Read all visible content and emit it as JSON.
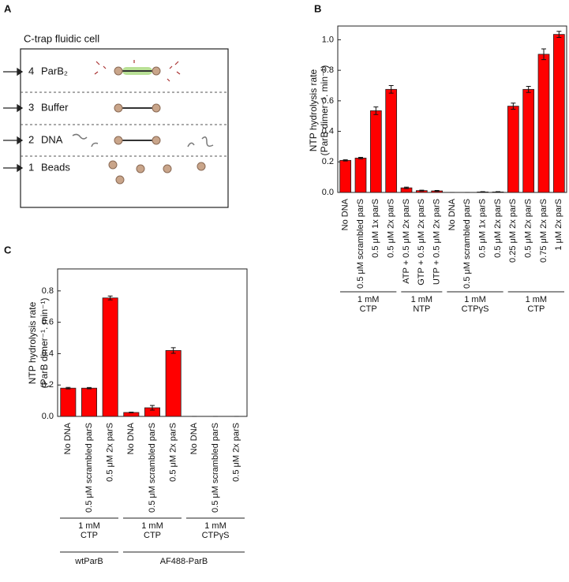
{
  "panel_labels": [
    "A",
    "B",
    "C"
  ],
  "diagram": {
    "title": "C-trap fluidic cell",
    "channels": [
      {
        "number": "4",
        "label": "ParB₂"
      },
      {
        "number": "3",
        "label": "Buffer"
      },
      {
        "number": "2",
        "label": "DNA"
      },
      {
        "number": "1",
        "label": "Beads"
      }
    ]
  },
  "chart_data": [
    {
      "type": "bar",
      "y_label": [
        "NTP hydrolysis rate",
        "(ParB dimer⁻¹. min⁻¹)"
      ],
      "color": "#ff0000",
      "ylim": [
        0,
        1.09
      ],
      "yticks": [
        {
          "value": 0,
          "label": "0.0"
        },
        0.2,
        0.4,
        0.6,
        0.8,
        {
          "value": 1,
          "label": "1.0"
        }
      ],
      "groups": [
        {
          "label": [
            "1 mM",
            "CTP"
          ],
          "categories": [
            "No DNA",
            "0.5 μM scrambled parS",
            "0.5 μM 1x parS",
            "0.5 μM 2x parS"
          ],
          "values": [
            0.21,
            0.225,
            0.535,
            0.675
          ],
          "errors": [
            0.004,
            0.005,
            0.025,
            0.025
          ]
        },
        {
          "label": [
            "1 mM",
            "NTP"
          ],
          "categories": [
            "ATP + 0.5 μM 2x parS",
            "GTP + 0.5 μM 2x parS",
            "UTP + 0.5 μM 2x parS"
          ],
          "values": [
            0.03,
            0.012,
            0.01
          ],
          "errors": [
            0.005,
            0.003,
            0.003
          ]
        },
        {
          "label": [
            "1 mM",
            "CTPγS"
          ],
          "categories": [
            "No DNA",
            "0.5 μM scrambled parS",
            "0.5 μM 1x parS",
            "0.5 μM 2x parS"
          ],
          "values": [
            0,
            0,
            0.003,
            0.003
          ],
          "errors": [
            0,
            0,
            0.002,
            0.002
          ]
        },
        {
          "label": [
            "1 mM",
            "CTP"
          ],
          "categories": [
            "0.25 μM 2x parS",
            "0.5 μM 2x parS",
            "0.75 μM 2x parS",
            "1 μM 2x parS"
          ],
          "values": [
            0.565,
            0.675,
            0.905,
            1.035
          ],
          "errors": [
            0.02,
            0.02,
            0.035,
            0.02
          ]
        }
      ]
    },
    {
      "type": "bar",
      "y_label": [
        "NTP hydrolysis rate",
        "(ParB dimer⁻¹. min⁻¹)"
      ],
      "color": "#ff0000",
      "ylim": [
        0,
        0.94
      ],
      "yticks": [
        {
          "value": 0,
          "label": "0.0"
        },
        0.2,
        0.4,
        0.6,
        0.8
      ],
      "sections": [
        {
          "name": "wtParB",
          "groups": [
            {
              "label": [
                "1 mM",
                "CTP"
              ],
              "categories": [
                "No DNA",
                "0.5 μM scrambled parS",
                "0.5 μM 2x parS"
              ],
              "values": [
                0.18,
                0.18,
                0.755
              ],
              "errors": [
                0.005,
                0.004,
                0.012
              ]
            }
          ]
        },
        {
          "name": "AF488-ParB",
          "groups": [
            {
              "label": [
                "1 mM",
                "CTP"
              ],
              "categories": [
                "No DNA",
                "0.5 μM scrambled parS",
                "0.5 μM 2x parS"
              ],
              "values": [
                0.025,
                0.055,
                0.42
              ],
              "errors": [
                0.002,
                0.015,
                0.018
              ]
            },
            {
              "label": [
                "1 mM",
                "CTPγS"
              ],
              "categories": [
                "No DNA",
                "0.5 μM scrambled parS",
                "0.5 μM 2x parS"
              ],
              "values": [
                0,
                0,
                0
              ],
              "errors": [
                0,
                0,
                0
              ]
            }
          ]
        }
      ]
    }
  ]
}
